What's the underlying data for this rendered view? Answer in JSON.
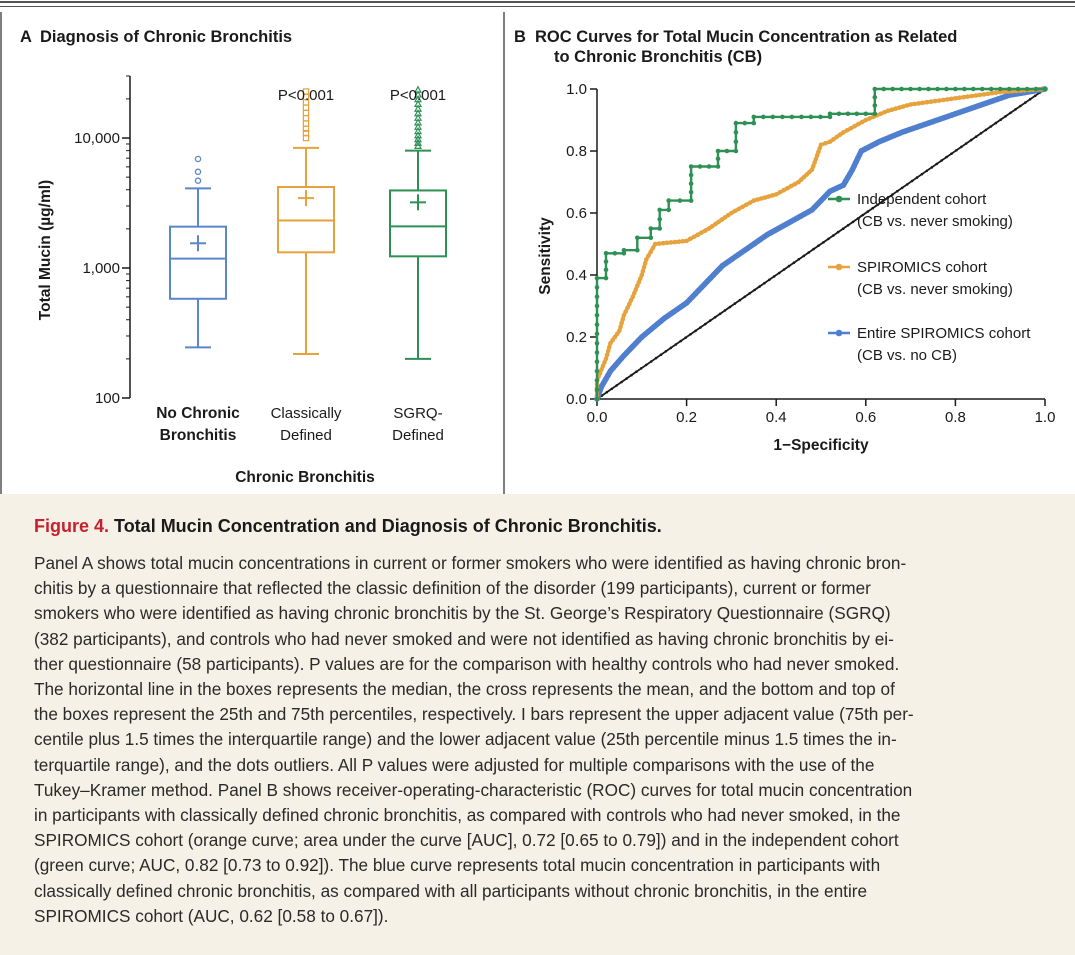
{
  "chart_data": [
    {
      "type": "box",
      "panel_letter": "A",
      "title": "Diagnosis of Chronic Bronchitis",
      "ylabel": "Total Mucin (µg/ml)",
      "xlabel": "Chronic Bronchitis",
      "yscale": "log",
      "ylim": [
        100,
        30000
      ],
      "y_ticks": [
        100,
        1000,
        10000
      ],
      "y_tick_labels": [
        "100",
        "1,000",
        "10,000"
      ],
      "categories": [
        {
          "line1": "No Chronic",
          "line2": "Bronchitis",
          "bold": true
        },
        {
          "line1": "Classically",
          "line2": "Defined",
          "bold": false
        },
        {
          "line1": "SGRQ-",
          "line2": "Defined",
          "bold": false
        }
      ],
      "series": [
        {
          "color": "#5b86c8",
          "whisker_low": 245,
          "q1": 580,
          "median": 1180,
          "q3": 2080,
          "whisker_high": 4100,
          "mean": 1550,
          "outliers": [
            4700,
            5500,
            6900
          ],
          "pvalue": ""
        },
        {
          "color": "#e6a23c",
          "whisker_low": 218,
          "q1": 1320,
          "median": 2320,
          "q3": 4200,
          "whisker_high": 8400,
          "mean": 3450,
          "outliers": [
            10000,
            10900,
            11800,
            12900,
            14200,
            15600,
            17100,
            18800,
            20700,
            22800
          ],
          "pvalue": "P<0.001"
        },
        {
          "color": "#2e9055",
          "whisker_low": 200,
          "q1": 1230,
          "median": 2090,
          "q3": 3950,
          "whisker_high": 8000,
          "mean": 3200,
          "outliers": [
            8700,
            9200,
            9800,
            10500,
            11300,
            12200,
            13200,
            14300,
            15500,
            16800,
            18300,
            19900,
            21600,
            23500
          ],
          "pvalue": "P<0.001"
        }
      ]
    },
    {
      "type": "line",
      "panel_letter": "B",
      "title_lines": [
        "ROC Curves for Total Mucin Concentration as Related",
        "to Chronic Bronchitis (CB)"
      ],
      "xlabel": "1−Specificity",
      "ylabel": "Sensitivity",
      "xlim": [
        0,
        1
      ],
      "ylim": [
        0,
        1
      ],
      "x_ticks": [
        "0.0",
        "0.2",
        "0.4",
        "0.6",
        "0.8",
        "1.0"
      ],
      "y_ticks": [
        "0.0",
        "0.2",
        "0.4",
        "0.6",
        "0.8",
        "1.0"
      ],
      "series": [
        {
          "legend_line1": "Independent cohort",
          "legend_line2": "(CB vs. never smoking)",
          "color": "#2e9055",
          "step": true,
          "points": [
            [
              0,
              0
            ],
            [
              0,
              0.39
            ],
            [
              0.02,
              0.39
            ],
            [
              0.02,
              0.47
            ],
            [
              0.06,
              0.47
            ],
            [
              0.06,
              0.48
            ],
            [
              0.09,
              0.48
            ],
            [
              0.09,
              0.52
            ],
            [
              0.12,
              0.52
            ],
            [
              0.12,
              0.55
            ],
            [
              0.14,
              0.55
            ],
            [
              0.14,
              0.61
            ],
            [
              0.16,
              0.61
            ],
            [
              0.16,
              0.64
            ],
            [
              0.21,
              0.64
            ],
            [
              0.21,
              0.75
            ],
            [
              0.27,
              0.75
            ],
            [
              0.27,
              0.8
            ],
            [
              0.31,
              0.8
            ],
            [
              0.31,
              0.89
            ],
            [
              0.35,
              0.89
            ],
            [
              0.35,
              0.91
            ],
            [
              0.52,
              0.91
            ],
            [
              0.52,
              0.92
            ],
            [
              0.62,
              0.92
            ],
            [
              0.62,
              1.0
            ],
            [
              1.0,
              1.0
            ]
          ]
        },
        {
          "legend_line1": "SPIROMICS cohort",
          "legend_line2": "(CB vs. never smoking)",
          "color": "#e6a23c",
          "step": false,
          "points": [
            [
              0,
              0
            ],
            [
              0,
              0.06
            ],
            [
              0.02,
              0.13
            ],
            [
              0.03,
              0.18
            ],
            [
              0.05,
              0.22
            ],
            [
              0.06,
              0.27
            ],
            [
              0.08,
              0.33
            ],
            [
              0.1,
              0.4
            ],
            [
              0.11,
              0.45
            ],
            [
              0.13,
              0.5
            ],
            [
              0.2,
              0.51
            ],
            [
              0.25,
              0.55
            ],
            [
              0.3,
              0.6
            ],
            [
              0.35,
              0.64
            ],
            [
              0.4,
              0.66
            ],
            [
              0.45,
              0.7
            ],
            [
              0.48,
              0.74
            ],
            [
              0.5,
              0.82
            ],
            [
              0.52,
              0.83
            ],
            [
              0.55,
              0.86
            ],
            [
              0.6,
              0.9
            ],
            [
              0.65,
              0.93
            ],
            [
              0.7,
              0.95
            ],
            [
              0.8,
              0.97
            ],
            [
              0.9,
              0.99
            ],
            [
              1.0,
              1.0
            ]
          ]
        },
        {
          "legend_line1": "Entire SPIROMICS cohort",
          "legend_line2": "(CB vs. no CB)",
          "color": "#4f7fce",
          "step": false,
          "points": [
            [
              0,
              0
            ],
            [
              0.01,
              0.04
            ],
            [
              0.03,
              0.09
            ],
            [
              0.06,
              0.14
            ],
            [
              0.1,
              0.2
            ],
            [
              0.15,
              0.26
            ],
            [
              0.2,
              0.31
            ],
            [
              0.24,
              0.37
            ],
            [
              0.28,
              0.43
            ],
            [
              0.33,
              0.48
            ],
            [
              0.38,
              0.53
            ],
            [
              0.43,
              0.57
            ],
            [
              0.48,
              0.61
            ],
            [
              0.52,
              0.67
            ],
            [
              0.55,
              0.69
            ],
            [
              0.57,
              0.74
            ],
            [
              0.59,
              0.8
            ],
            [
              0.63,
              0.83
            ],
            [
              0.68,
              0.86
            ],
            [
              0.74,
              0.89
            ],
            [
              0.8,
              0.92
            ],
            [
              0.86,
              0.95
            ],
            [
              0.92,
              0.98
            ],
            [
              1.0,
              1.0
            ]
          ]
        },
        {
          "legend_line1": "",
          "legend_line2": "",
          "color": "#1a1a1a",
          "step": false,
          "points": [
            [
              0,
              0
            ],
            [
              1,
              1
            ]
          ]
        }
      ]
    }
  ],
  "caption": {
    "figure_label": "Figure 4.",
    "title": "Total Mucin Concentration and Diagnosis of Chronic Bronchitis.",
    "lines": [
      "Panel A shows total mucin concentrations in current or former smokers who were identified as having chronic bron-",
      "chitis by a questionnaire that reflected the classic definition of the disorder (199 participants), current or former",
      "smokers who were identified as having chronic bronchitis by the St. George’s Respiratory Questionnaire (SGRQ)",
      "(382 participants), and controls who had never smoked and were not identified as having chronic bronchitis by ei-",
      "ther questionnaire (58 participants). P values are for the comparison with healthy controls who had never smoked.",
      "The horizontal line in the boxes represents the median, the cross represents the mean, and the bottom and top of",
      "the boxes represent the 25th and 75th percentiles, respectively. I bars represent the upper adjacent value (75th per-",
      "centile plus 1.5 times the interquartile range) and the lower adjacent value (25th percentile minus 1.5 times the in-",
      "terquartile range), and the dots outliers. All P values were adjusted for multiple comparisons with the use of the",
      "Tukey–Kramer method. Panel B shows receiver-operating-characteristic (ROC) curves for total mucin concentration",
      "in participants with classically defined chronic bronchitis, as compared with controls who had never smoked, in the",
      "SPIROMICS cohort (orange curve; area under the curve [AUC], 0.72 [0.65 to 0.79]) and in the independent cohort",
      "(green curve; AUC, 0.82 [0.73 to 0.92]). The blue curve represents total mucin concentration in participants with",
      "classically defined chronic bronchitis, as compared with all participants without chronic bronchitis, in the entire",
      "SPIROMICS cohort (AUC, 0.62 [0.58 to 0.67])."
    ]
  }
}
